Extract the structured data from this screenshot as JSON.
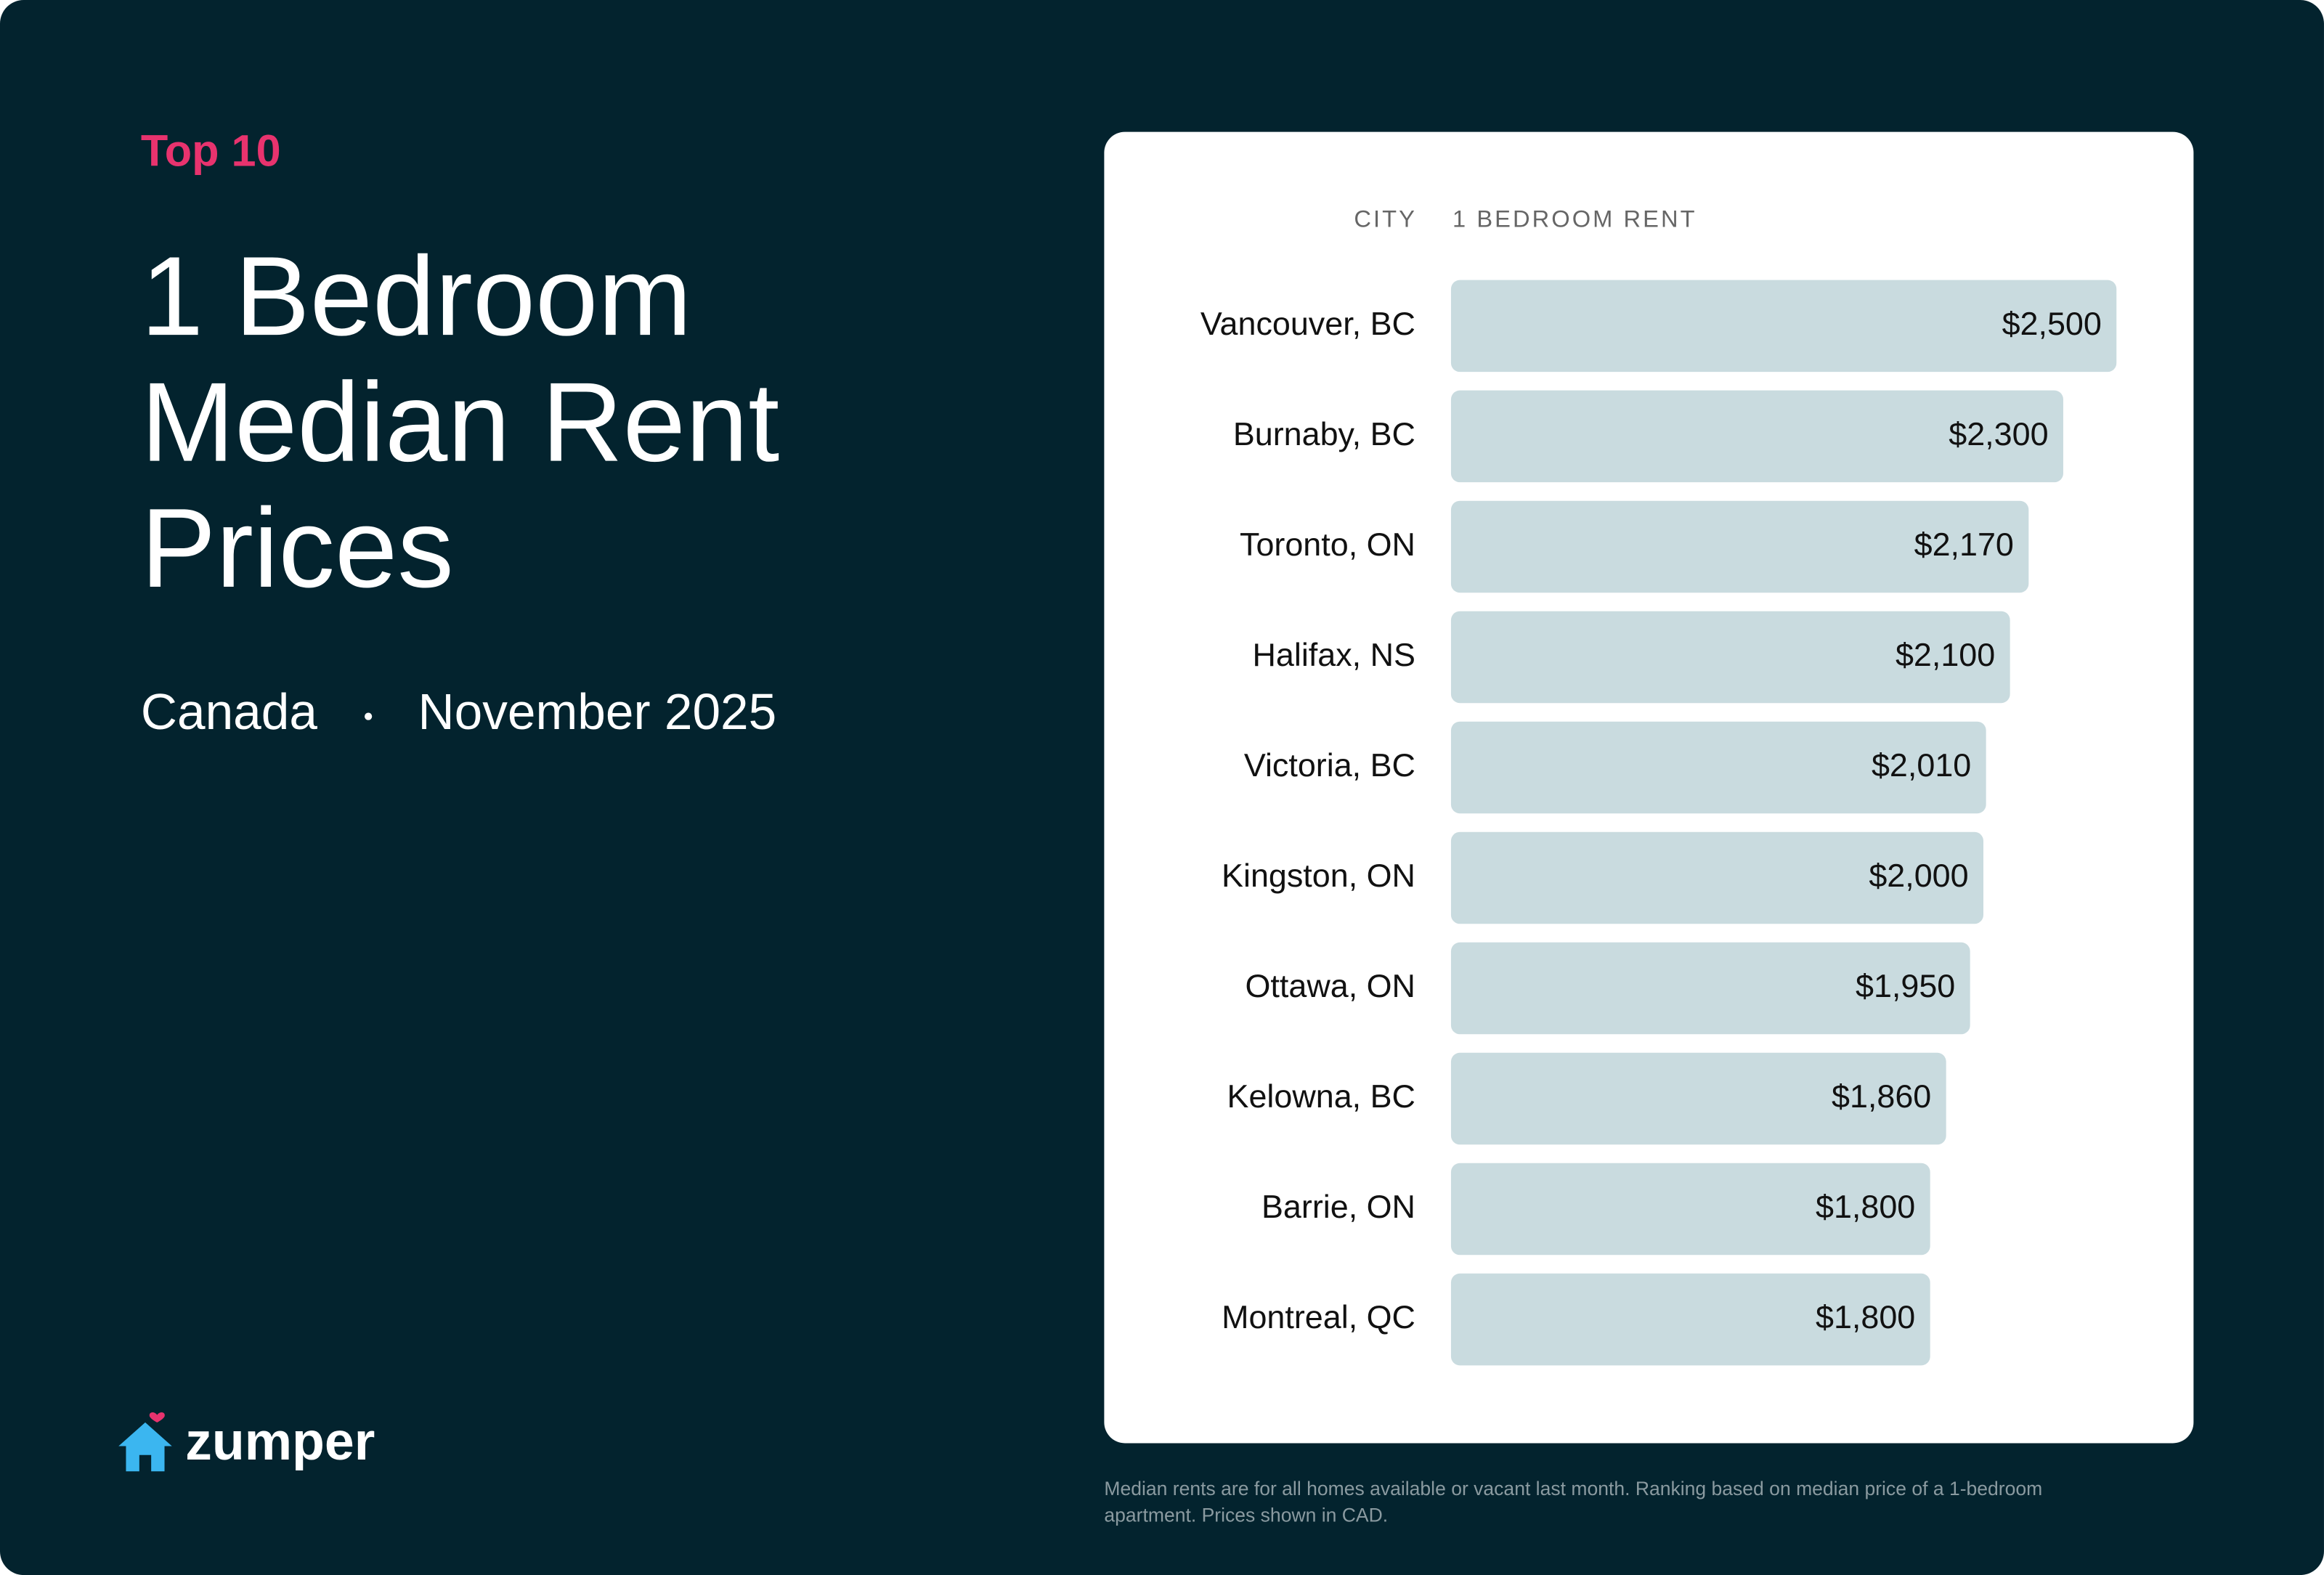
{
  "header": {
    "tag": "Top 10",
    "title": "1 Bedroom Median Rent Prices",
    "region": "Canada",
    "date": "November 2025"
  },
  "chart_data": {
    "type": "bar",
    "orientation": "horizontal",
    "category_header": "CITY",
    "value_header": "1 BEDROOM RENT",
    "categories": [
      "Vancouver, BC",
      "Burnaby, BC",
      "Toronto, ON",
      "Halifax, NS",
      "Victoria, BC",
      "Kingston, ON",
      "Ottawa, ON",
      "Kelowna, BC",
      "Barrie, ON",
      "Montreal, QC"
    ],
    "values": [
      2500,
      2300,
      2170,
      2100,
      2010,
      2000,
      1950,
      1860,
      1800,
      1800
    ],
    "value_labels": [
      "$2,500",
      "$2,300",
      "$2,170",
      "$2,100",
      "$2,010",
      "$2,000",
      "$1,950",
      "$1,860",
      "$1,800",
      "$1,800"
    ],
    "color": "#c9dbdf"
  },
  "footnote": "Median rents are for all homes available or vacant last month. Ranking based on median price of a 1-bedroom apartment. Prices shown in CAD.",
  "brand": "zumper"
}
